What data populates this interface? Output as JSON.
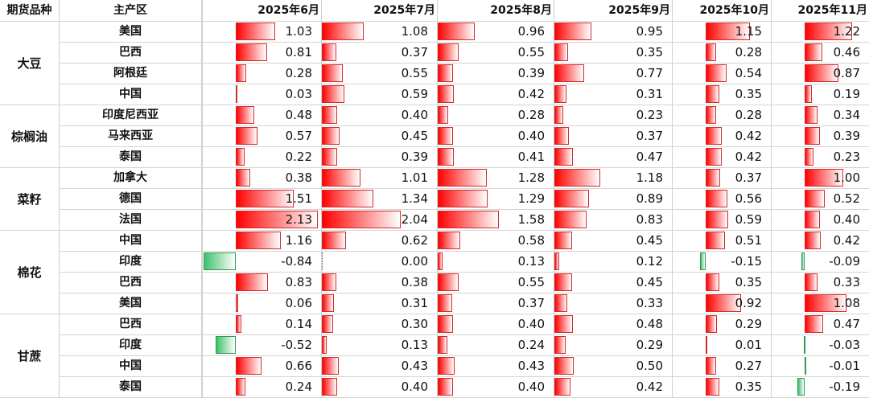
{
  "header": {
    "category": "期货品种",
    "region": "主产区",
    "months": [
      "2025年6月",
      "2025年7月",
      "2025年8月",
      "2025年9月",
      "2025年10月",
      "2025年11月"
    ]
  },
  "colors": {
    "positive": "#ff0000",
    "negative": "#3fbf6a"
  },
  "chart_data": {
    "type": "table",
    "columns": [
      "2025年6月",
      "2025年7月",
      "2025年8月",
      "2025年9月",
      "2025年10月",
      "2025年11月"
    ],
    "groups": [
      {
        "name": "大豆",
        "rows": [
          {
            "region": "美国",
            "values": [
              1.03,
              1.08,
              0.96,
              0.95,
              1.15,
              1.22
            ]
          },
          {
            "region": "巴西",
            "values": [
              0.81,
              0.37,
              0.55,
              0.35,
              0.28,
              0.46
            ]
          },
          {
            "region": "阿根廷",
            "values": [
              0.28,
              0.55,
              0.39,
              0.77,
              0.54,
              0.87
            ]
          },
          {
            "region": "中国",
            "values": [
              0.03,
              0.59,
              0.42,
              0.31,
              0.35,
              0.19
            ]
          }
        ]
      },
      {
        "name": "棕榈油",
        "rows": [
          {
            "region": "印度尼西亚",
            "values": [
              0.48,
              0.4,
              0.28,
              0.23,
              0.28,
              0.34
            ]
          },
          {
            "region": "马来西亚",
            "values": [
              0.57,
              0.45,
              0.4,
              0.37,
              0.42,
              0.39
            ]
          },
          {
            "region": "泰国",
            "values": [
              0.22,
              0.39,
              0.41,
              0.47,
              0.42,
              0.23
            ]
          }
        ]
      },
      {
        "name": "菜籽",
        "rows": [
          {
            "region": "加拿大",
            "values": [
              0.38,
              1.01,
              1.28,
              1.18,
              0.37,
              1.0
            ]
          },
          {
            "region": "德国",
            "values": [
              1.51,
              1.34,
              1.29,
              0.89,
              0.56,
              0.52
            ]
          },
          {
            "region": "法国",
            "values": [
              2.13,
              2.04,
              1.58,
              0.83,
              0.59,
              0.4
            ]
          }
        ]
      },
      {
        "name": "棉花",
        "rows": [
          {
            "region": "中国",
            "values": [
              1.16,
              0.62,
              0.58,
              0.45,
              0.51,
              0.42
            ]
          },
          {
            "region": "印度",
            "values": [
              -0.84,
              0.0,
              0.13,
              0.12,
              -0.15,
              -0.09
            ]
          },
          {
            "region": "巴西",
            "values": [
              0.83,
              0.38,
              0.55,
              0.45,
              0.35,
              0.33
            ]
          },
          {
            "region": "美国",
            "values": [
              0.06,
              0.31,
              0.37,
              0.33,
              0.92,
              1.08
            ]
          }
        ]
      },
      {
        "name": "甘蔗",
        "rows": [
          {
            "region": "巴西",
            "values": [
              0.14,
              0.3,
              0.4,
              0.48,
              0.29,
              0.47
            ]
          },
          {
            "region": "印度",
            "values": [
              -0.52,
              0.13,
              0.24,
              0.29,
              0.01,
              -0.03
            ]
          },
          {
            "region": "中国",
            "values": [
              0.66,
              0.43,
              0.43,
              0.5,
              0.27,
              -0.01
            ]
          },
          {
            "region": "泰国",
            "values": [
              0.24,
              0.4,
              0.4,
              0.42,
              0.35,
              -0.19
            ]
          }
        ]
      }
    ]
  }
}
